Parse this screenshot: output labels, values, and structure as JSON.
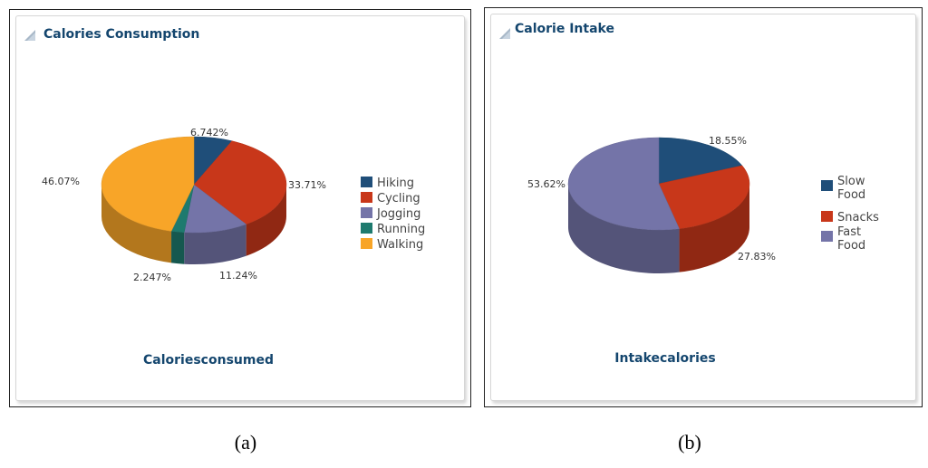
{
  "chart_data": [
    {
      "type": "pie",
      "title": "Calories Consumption",
      "xlabel": "Caloriesconsumed",
      "categories": [
        "Hiking",
        "Cycling",
        "Jogging",
        "Running",
        "Walking"
      ],
      "values": [
        6.742,
        33.71,
        11.24,
        2.247,
        46.07
      ],
      "labels": [
        "6.742%",
        "33.71%",
        "11.24%",
        "2.247%",
        "46.07%"
      ],
      "colors": [
        "#1f4e79",
        "#c8371a",
        "#7474a8",
        "#1e7a6e",
        "#f8a528"
      ],
      "legend_position": "right",
      "caption": "(a)"
    },
    {
      "type": "pie",
      "title": "Calorie Intake",
      "xlabel": "Intakecalories",
      "categories": [
        "Slow Food",
        "Snacks",
        "Fast Food"
      ],
      "values": [
        18.55,
        27.83,
        53.62
      ],
      "labels": [
        "18.55%",
        "27.83%",
        "53.62%"
      ],
      "colors": [
        "#1f4e79",
        "#c8371a",
        "#7474a8"
      ],
      "legend_position": "right",
      "caption": "(b)"
    }
  ]
}
